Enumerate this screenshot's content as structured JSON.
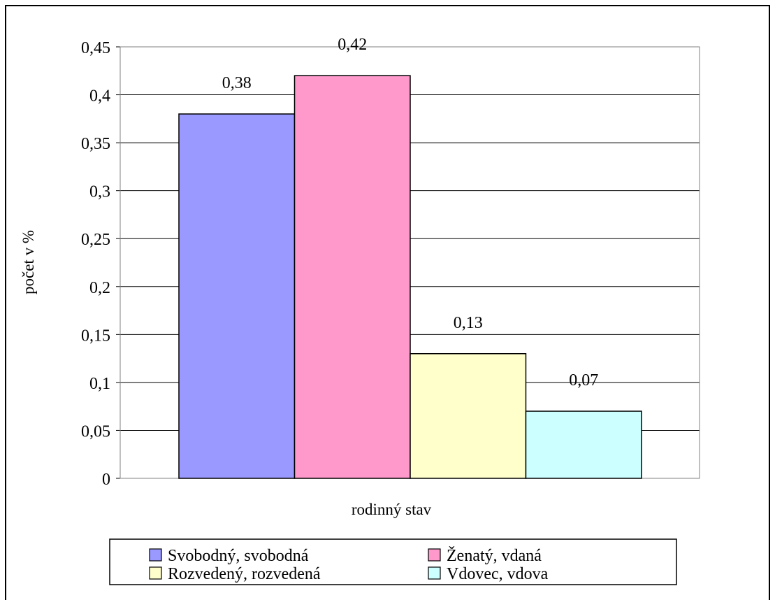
{
  "chart_data": {
    "type": "bar",
    "title": "",
    "xlabel": "rodinný stav",
    "ylabel": "počet v %",
    "ylim": [
      0,
      0.45
    ],
    "yticks": [
      "0",
      "0,05",
      "0,1",
      "0,15",
      "0,2",
      "0,25",
      "0,3",
      "0,35",
      "0,4",
      "0,45"
    ],
    "grid": true,
    "legend_position": "bottom",
    "series": [
      {
        "name": "Svobodný, svobodná",
        "value": 0.38,
        "label": "0,38",
        "color": "#9999ff"
      },
      {
        "name": "Ženatý, vdaná",
        "value": 0.42,
        "label": "0,42",
        "color": "#ff99cc"
      },
      {
        "name": "Rozvedený, rozvedená",
        "value": 0.13,
        "label": "0,13",
        "color": "#ffffcc"
      },
      {
        "name": "Vdovec, vdova",
        "value": 0.07,
        "label": "0,07",
        "color": "#ccffff"
      }
    ]
  }
}
